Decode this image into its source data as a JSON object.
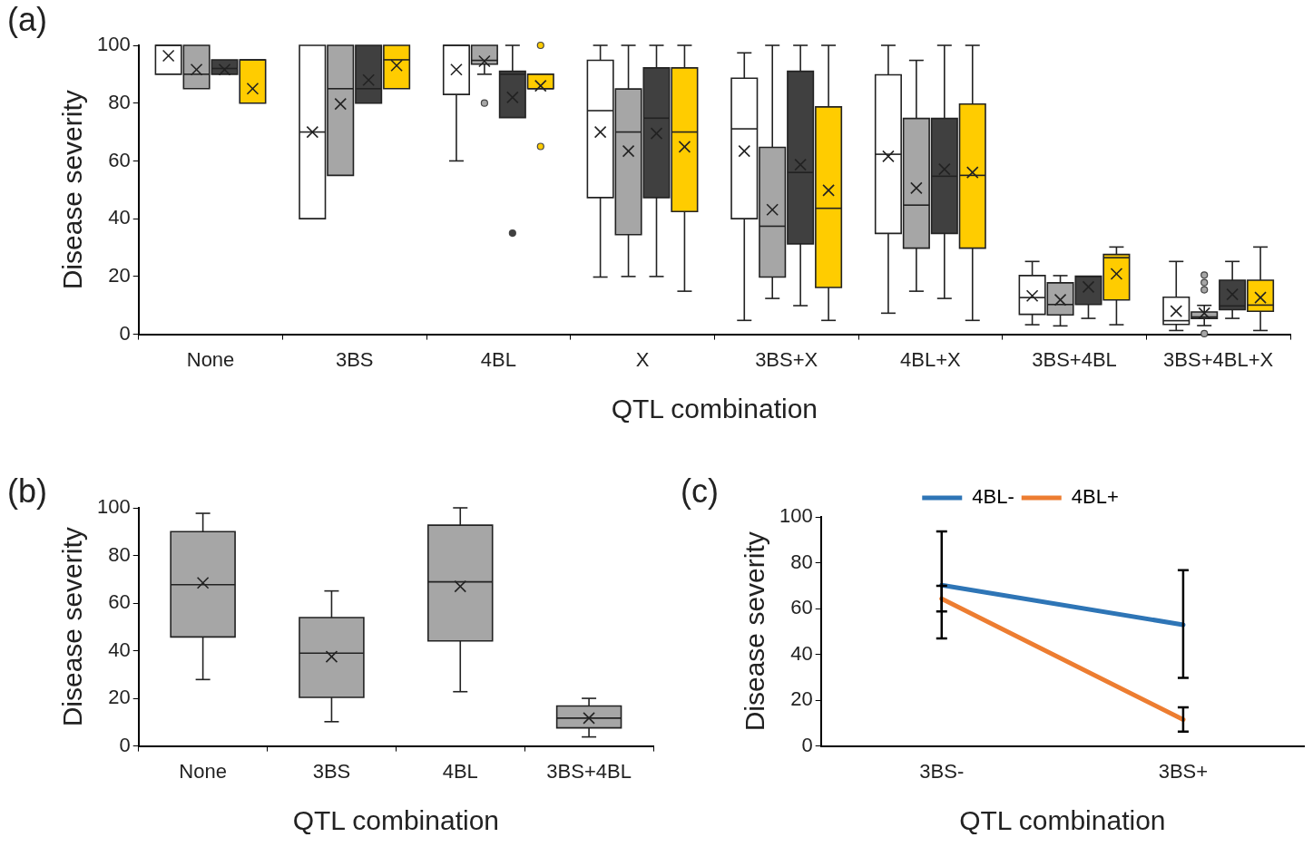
{
  "chart_data": [
    {
      "type": "box",
      "title": "(a)",
      "xlabel": "QTL combination",
      "ylabel": "Disease severity",
      "categories": [
        "None",
        "3BS",
        "4BL",
        "X",
        "3BS+X",
        "4BL+X",
        "3BS+4BL",
        "3BS+4BL+X"
      ],
      "ylim": [
        0,
        100
      ],
      "yticks": [
        0,
        20,
        40,
        60,
        80,
        100
      ],
      "grid": false,
      "legend": false,
      "series": [
        {
          "color": "#ffffff",
          "boxes": [
            {
              "low": 90,
              "q1": 90,
              "median": 100,
              "q3": 100,
              "high": 100,
              "mean": 96.4
            },
            {
              "low": 40,
              "q1": 40,
              "median": 70,
              "q3": 100,
              "high": 100,
              "mean": 70
            },
            {
              "low": 60,
              "q1": 83,
              "median": 100,
              "q3": 100,
              "high": 100,
              "mean": 91.6
            },
            {
              "low": 19.8,
              "q1": 47.3,
              "median": 77.4,
              "q3": 94.8,
              "high": 100,
              "mean": 70
            },
            {
              "low": 4.8,
              "q1": 40,
              "median": 71.1,
              "q3": 88.6,
              "high": 97.4,
              "mean": 63.4
            },
            {
              "low": 7.3,
              "q1": 34.9,
              "median": 62.3,
              "q3": 89.8,
              "high": 100,
              "mean": 61.6
            },
            {
              "low": 3.3,
              "q1": 6.9,
              "median": 12.7,
              "q3": 20.3,
              "high": 25.2,
              "mean": 13.3
            },
            {
              "low": 1.3,
              "q1": 3.4,
              "median": 4.7,
              "q3": 12.8,
              "high": 25.2,
              "mean": 8
            }
          ]
        },
        {
          "color": "#a6a6a6",
          "boxes": [
            {
              "low": 85,
              "q1": 85,
              "median": 90,
              "q3": 100,
              "high": 100,
              "mean": 91.6
            },
            {
              "low": 55,
              "q1": 55,
              "median": 85,
              "q3": 100,
              "high": 100,
              "mean": 79.7
            },
            {
              "low": 90,
              "q1": 93.5,
              "median": 94.8,
              "q3": 100,
              "high": 100,
              "mean": 94.5,
              "outliers": [
                80
              ]
            },
            {
              "low": 20,
              "q1": 34.5,
              "median": 70,
              "q3": 84.9,
              "high": 100,
              "mean": 63.4
            },
            {
              "low": 12.4,
              "q1": 19.8,
              "median": 37.4,
              "q3": 64.7,
              "high": 100,
              "mean": 43.1
            },
            {
              "low": 14.9,
              "q1": 29.8,
              "median": 44.7,
              "q3": 74.7,
              "high": 94.8,
              "mean": 50.6
            },
            {
              "low": 2.9,
              "q1": 6.7,
              "median": 10.3,
              "q3": 17.8,
              "high": 20.3,
              "mean": 11.9
            },
            {
              "low": 3,
              "q1": 5.5,
              "median": 6,
              "q3": 7.7,
              "high": 10,
              "mean": 7.3,
              "outliers": [
                20.5,
                17.9,
                15.4,
                0.2
              ]
            }
          ]
        },
        {
          "color": "#404040",
          "boxes": [
            {
              "low": 90,
              "q1": 90,
              "median": 92,
              "q3": 95,
              "high": 95,
              "mean": 91.6
            },
            {
              "low": 80,
              "q1": 80,
              "median": 85,
              "q3": 100,
              "high": 100,
              "mean": 88
            },
            {
              "low": 75,
              "q1": 75,
              "median": 90,
              "q3": 91,
              "high": 100,
              "mean": 82,
              "outliers": [
                35
              ]
            },
            {
              "low": 20,
              "q1": 47.3,
              "median": 74.8,
              "q3": 92.2,
              "high": 100,
              "mean": 69.5
            },
            {
              "low": 9.9,
              "q1": 31.3,
              "median": 56,
              "q3": 91,
              "high": 100,
              "mean": 58.7
            },
            {
              "low": 12.4,
              "q1": 34.9,
              "median": 54.7,
              "q3": 74.7,
              "high": 100,
              "mean": 57.1
            },
            {
              "low": 5.5,
              "q1": 10.3,
              "median": 20,
              "q3": 20.1,
              "high": 20.1,
              "mean": 16.4
            },
            {
              "low": 5.5,
              "q1": 8.5,
              "median": 9.8,
              "q3": 18.7,
              "high": 25.2,
              "mean": 13.8
            }
          ]
        },
        {
          "color": "#ffcc00",
          "boxes": [
            {
              "low": 80,
              "q1": 80,
              "median": 95,
              "q3": 95,
              "high": 95,
              "mean": 85
            },
            {
              "low": 85,
              "q1": 85,
              "median": 95,
              "q3": 100,
              "high": 100,
              "mean": 93
            },
            {
              "low": 85,
              "q1": 85,
              "median": 85,
              "q3": 90,
              "high": 90,
              "mean": 86,
              "outliers": [
                100,
                65
              ]
            },
            {
              "low": 14.9,
              "q1": 42.5,
              "median": 70,
              "q3": 92.2,
              "high": 100,
              "mean": 64.9
            },
            {
              "low": 4.8,
              "q1": 16.2,
              "median": 43.6,
              "q3": 78.7,
              "high": 100,
              "mean": 49.8
            },
            {
              "low": 4.8,
              "q1": 29.8,
              "median": 55,
              "q3": 79.7,
              "high": 100,
              "mean": 56
            },
            {
              "low": 3.3,
              "q1": 11.9,
              "median": 26.5,
              "q3": 27.6,
              "high": 30.2,
              "mean": 20.9
            },
            {
              "low": 1.3,
              "q1": 7.96,
              "median": 10.1,
              "q3": 18.7,
              "high": 30.2,
              "mean": 12.7
            }
          ]
        }
      ]
    },
    {
      "type": "box",
      "title": "(b)",
      "xlabel": "QTL combination",
      "ylabel": "Disease severity",
      "categories": [
        "None",
        "3BS",
        "4BL",
        "3BS+4BL"
      ],
      "ylim": [
        0,
        100
      ],
      "yticks": [
        0,
        20,
        40,
        60,
        80,
        100
      ],
      "grid": false,
      "legend": false,
      "series": [
        {
          "color": "#a6a6a6",
          "boxes": [
            {
              "low": 27.9,
              "q1": 45.8,
              "median": 67.7,
              "q3": 90,
              "high": 97.7,
              "mean": 68.5
            },
            {
              "low": 10.2,
              "q1": 20.4,
              "median": 39,
              "q3": 53.9,
              "high": 65.1,
              "mean": 37.5
            },
            {
              "low": 22.8,
              "q1": 44.1,
              "median": 68.9,
              "q3": 92.7,
              "high": 100,
              "mean": 67
            },
            {
              "low": 3.8,
              "q1": 7.6,
              "median": 11.7,
              "q3": 16.8,
              "high": 20,
              "mean": 11.7
            }
          ]
        }
      ]
    },
    {
      "type": "line",
      "title": "(c)",
      "xlabel": "QTL combination",
      "ylabel": "Disease severity",
      "categories": [
        "3BS-",
        "3BS+"
      ],
      "ylim": [
        0,
        100
      ],
      "yticks": [
        0,
        20,
        40,
        60,
        80,
        100
      ],
      "grid": false,
      "legend": "top",
      "marker": "none",
      "series": [
        {
          "name": "4BL-",
          "color": "#2e75b6",
          "values": [
            70.2,
            52.9
          ],
          "errors": [
            [
              47,
              93.7
            ],
            [
              29.7,
              76.7
            ]
          ]
        },
        {
          "name": "4BL+",
          "color": "#ed7d31",
          "values": [
            64.3,
            11.5
          ],
          "errors": [
            [
              58.7,
              69.9
            ],
            [
              6.3,
              16.9
            ]
          ]
        }
      ]
    }
  ]
}
